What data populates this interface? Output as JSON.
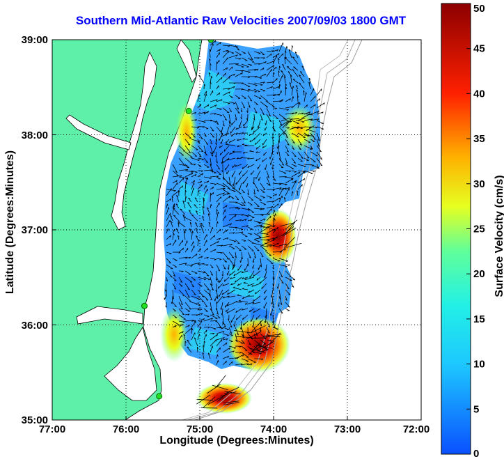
{
  "chart_data": {
    "type": "heatmap",
    "title": "Southern Mid-Atlantic Raw Velocities 2007/09/03 1800 GMT",
    "xlabel": "Longitude (Degrees:Minutes)",
    "ylabel": "Latitude (Degrees:Minutes)",
    "colorbar_label": "Surface Velocity (cm/s)",
    "x_ticks": [
      "77:00",
      "76:00",
      "75:00",
      "74:00",
      "73:00",
      "72:00"
    ],
    "y_ticks": [
      "39:00",
      "38:00",
      "37:00",
      "36:00",
      "35:00"
    ],
    "xlim": [
      -77,
      -72
    ],
    "ylim": [
      35,
      39
    ],
    "colorbar_ticks": [
      "0",
      "5",
      "10",
      "15",
      "20",
      "25",
      "30",
      "35",
      "40",
      "45",
      "50"
    ],
    "colorbar_range": [
      0,
      50
    ],
    "grid": "dotted",
    "colors": {
      "title": "#0000ff",
      "land": "#5ef0a8",
      "axes": "#000000"
    },
    "hotspots_cm_s": [
      {
        "lon": -74.05,
        "lat": 36.95,
        "value": 45
      },
      {
        "lon": -74.3,
        "lat": 35.8,
        "value": 48
      },
      {
        "lon": -74.9,
        "lat": 35.25,
        "value": 47
      },
      {
        "lon": -73.75,
        "lat": 38.1,
        "value": 28
      }
    ],
    "station_markers": [
      {
        "lon": -74.85,
        "lat": 39.0
      },
      {
        "lon": -75.15,
        "lat": 38.25
      },
      {
        "lon": -75.75,
        "lat": 36.2
      },
      {
        "lon": -75.55,
        "lat": 35.25
      }
    ]
  }
}
